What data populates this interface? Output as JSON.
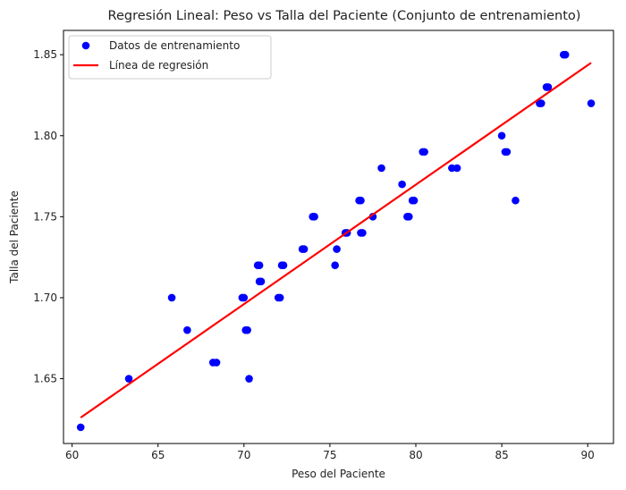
{
  "chart_data": {
    "type": "scatter",
    "title": "Regresión Lineal: Peso vs Talla del Paciente (Conjunto de entrenamiento)",
    "xlabel": "Peso del Paciente",
    "ylabel": "Talla del Paciente",
    "xlim": [
      59.5,
      91.5
    ],
    "ylim": [
      1.61,
      1.865
    ],
    "xticks": [
      60,
      65,
      70,
      75,
      80,
      85,
      90
    ],
    "yticks": [
      1.65,
      1.7,
      1.75,
      1.8,
      1.85
    ],
    "grid": false,
    "legend_position": "top-left",
    "series": [
      {
        "name": "Datos de entrenamiento",
        "kind": "scatter",
        "color": "#0000ff",
        "points": [
          [
            60.5,
            1.62
          ],
          [
            63.3,
            1.65
          ],
          [
            65.8,
            1.7
          ],
          [
            66.7,
            1.68
          ],
          [
            68.2,
            1.66
          ],
          [
            68.4,
            1.66
          ],
          [
            69.9,
            1.7
          ],
          [
            70.0,
            1.7
          ],
          [
            70.1,
            1.68
          ],
          [
            70.2,
            1.68
          ],
          [
            70.3,
            1.65
          ],
          [
            70.8,
            1.72
          ],
          [
            70.9,
            1.72
          ],
          [
            70.9,
            1.71
          ],
          [
            71.0,
            1.71
          ],
          [
            72.0,
            1.7
          ],
          [
            72.1,
            1.7
          ],
          [
            72.2,
            1.72
          ],
          [
            72.3,
            1.72
          ],
          [
            73.4,
            1.73
          ],
          [
            73.5,
            1.73
          ],
          [
            74.0,
            1.75
          ],
          [
            74.1,
            1.75
          ],
          [
            75.3,
            1.72
          ],
          [
            75.4,
            1.73
          ],
          [
            75.9,
            1.74
          ],
          [
            76.0,
            1.74
          ],
          [
            76.7,
            1.76
          ],
          [
            76.8,
            1.76
          ],
          [
            76.8,
            1.74
          ],
          [
            76.9,
            1.74
          ],
          [
            77.5,
            1.75
          ],
          [
            78.0,
            1.78
          ],
          [
            79.2,
            1.77
          ],
          [
            79.5,
            1.75
          ],
          [
            79.6,
            1.75
          ],
          [
            79.8,
            1.76
          ],
          [
            79.9,
            1.76
          ],
          [
            80.4,
            1.79
          ],
          [
            80.5,
            1.79
          ],
          [
            82.1,
            1.78
          ],
          [
            82.4,
            1.78
          ],
          [
            85.0,
            1.8
          ],
          [
            85.2,
            1.79
          ],
          [
            85.3,
            1.79
          ],
          [
            85.8,
            1.76
          ],
          [
            87.2,
            1.82
          ],
          [
            87.3,
            1.82
          ],
          [
            87.6,
            1.83
          ],
          [
            87.7,
            1.83
          ],
          [
            88.6,
            1.85
          ],
          [
            88.7,
            1.85
          ],
          [
            90.2,
            1.82
          ]
        ]
      },
      {
        "name": "Línea de regresión",
        "kind": "line",
        "color": "#ff0000",
        "points": [
          [
            60.5,
            1.626
          ],
          [
            90.2,
            1.845
          ]
        ]
      }
    ]
  }
}
